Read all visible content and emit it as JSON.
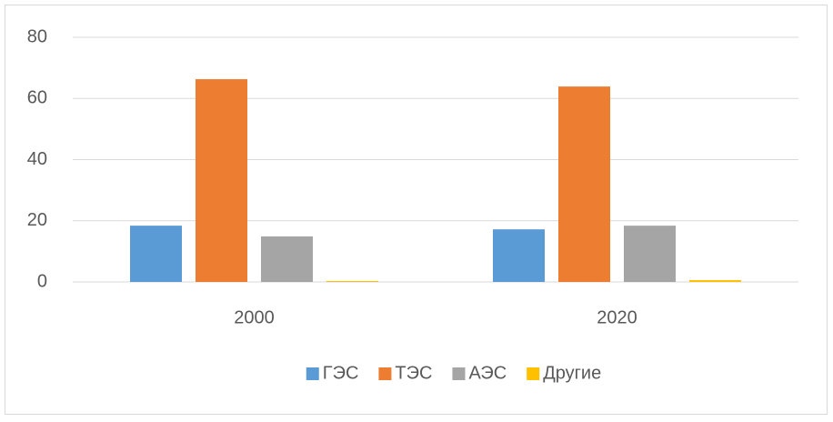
{
  "chart_data": {
    "type": "bar",
    "categories": [
      "2000",
      "2020"
    ],
    "series": [
      {
        "name": "ГЭС",
        "color": "#5b9bd5",
        "values": [
          18.4,
          17.2
        ]
      },
      {
        "name": "ТЭС",
        "color": "#ed7d31",
        "values": [
          66.3,
          63.9
        ]
      },
      {
        "name": "АЭС",
        "color": "#a5a5a5",
        "values": [
          14.9,
          18.4
        ]
      },
      {
        "name": "Другие",
        "color": "#ffc000",
        "values": [
          0.3,
          0.6
        ]
      }
    ],
    "ylim": [
      0,
      80
    ],
    "yticks": [
      0,
      20,
      40,
      60,
      80
    ],
    "grid": true,
    "legend": "bottom"
  }
}
